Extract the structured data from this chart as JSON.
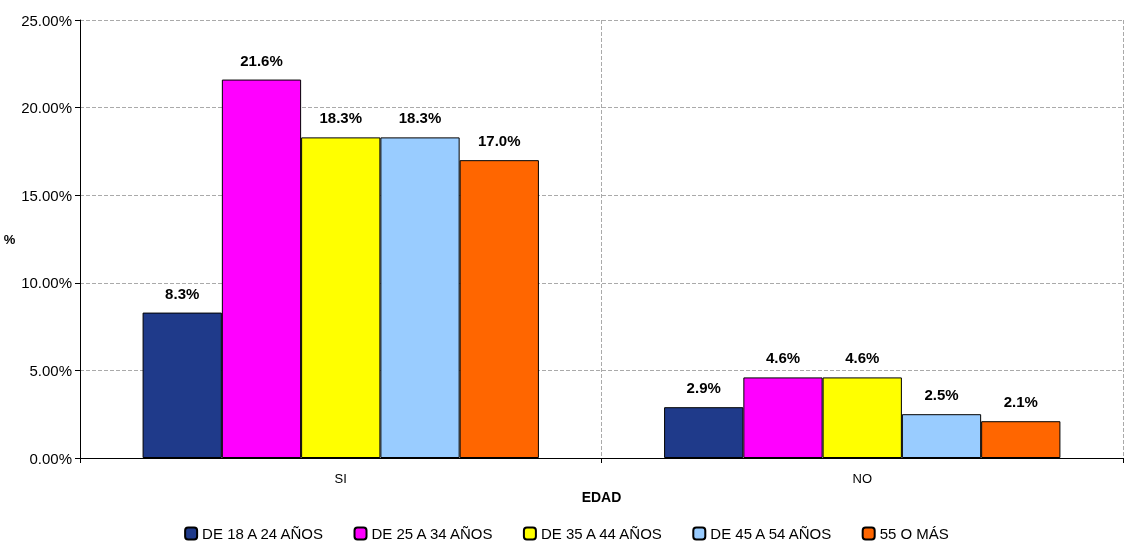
{
  "chart_data": {
    "type": "bar",
    "xlabel": "EDAD",
    "ylabel": "%",
    "categories": [
      "SI",
      "NO"
    ],
    "series": [
      {
        "name": "DE 18 A 24 AÑOS",
        "color": "#1f3a8a",
        "values": [
          8.3,
          2.9
        ],
        "value_labels": [
          "8.3%",
          "2.9%"
        ]
      },
      {
        "name": "DE 25 A 34 AÑOS",
        "color": "#ff00ff",
        "values": [
          21.6,
          4.6
        ],
        "value_labels": [
          "21.6%",
          "4.6%"
        ]
      },
      {
        "name": "DE 35 A 44 AÑOS",
        "color": "#ffff00",
        "values": [
          18.3,
          4.6
        ],
        "value_labels": [
          "18.3%",
          "4.6%"
        ]
      },
      {
        "name": "DE 45 A 54 AÑOS",
        "color": "#99ccff",
        "values": [
          18.3,
          2.5
        ],
        "value_labels": [
          "18.3%",
          "2.5%"
        ]
      },
      {
        "name": "55 O MÁS",
        "color": "#ff6600",
        "values": [
          17.0,
          2.1
        ],
        "value_labels": [
          "17.0%",
          "2.1%"
        ]
      }
    ],
    "ylim": [
      0,
      25
    ],
    "yticks": [
      {
        "value": 0,
        "label": "0.00%"
      },
      {
        "value": 5,
        "label": "5.00%"
      },
      {
        "value": 10,
        "label": "10.00%"
      },
      {
        "value": 15,
        "label": "15.00%"
      },
      {
        "value": 20,
        "label": "20.00%"
      },
      {
        "value": 25,
        "label": "25.00%"
      }
    ],
    "grid": true,
    "legend": "bottom"
  }
}
